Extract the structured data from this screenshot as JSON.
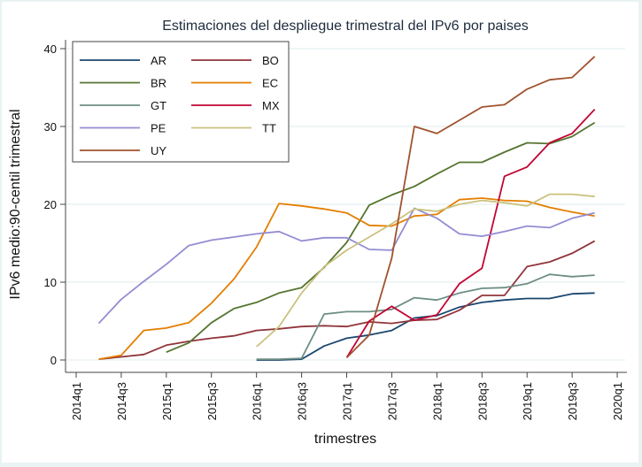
{
  "chart_data": {
    "type": "line",
    "title": "Estimaciones del despliegue trimestral del IPv6 por paises",
    "xlabel": "trimestres",
    "ylabel": "IPv6 medio:90-centil trimestral",
    "ylim": [
      0,
      40
    ],
    "yticks": [
      0,
      10,
      20,
      30,
      40
    ],
    "xticks": [
      "2014q1",
      "2014q3",
      "2015q1",
      "2015q3",
      "2016q1",
      "2016q3",
      "2017q1",
      "2017q3",
      "2018q1",
      "2018q3",
      "2019q1",
      "2019q3",
      "2020q1"
    ],
    "x": [
      "2014q1",
      "2014q2",
      "2014q3",
      "2014q4",
      "2015q1",
      "2015q2",
      "2015q3",
      "2015q4",
      "2016q1",
      "2016q2",
      "2016q3",
      "2016q4",
      "2017q1",
      "2017q2",
      "2017q3",
      "2017q4",
      "2018q1",
      "2018q2",
      "2018q3",
      "2018q4",
      "2019q1",
      "2019q2",
      "2019q3",
      "2019q4",
      "2020q1"
    ],
    "grid": true,
    "legend_position": "top-left",
    "series": [
      {
        "name": "AR",
        "color": "#1a476f",
        "values": [
          null,
          null,
          null,
          null,
          null,
          null,
          null,
          null,
          0.0,
          0.0,
          0.1,
          1.8,
          2.8,
          3.2,
          3.8,
          5.4,
          5.7,
          6.8,
          7.4,
          7.7,
          7.9,
          7.9,
          8.5,
          8.6,
          null
        ]
      },
      {
        "name": "BO",
        "color": "#90353b",
        "values": [
          null,
          0.1,
          0.4,
          0.7,
          1.9,
          2.4,
          2.8,
          3.1,
          3.8,
          4.0,
          4.3,
          4.4,
          4.3,
          4.9,
          4.7,
          5.1,
          5.2,
          6.4,
          8.3,
          8.3,
          12.0,
          12.6,
          13.7,
          15.3,
          null
        ]
      },
      {
        "name": "BR",
        "color": "#55752f",
        "values": [
          null,
          null,
          null,
          null,
          1.0,
          2.2,
          4.8,
          6.6,
          7.4,
          8.6,
          9.3,
          11.9,
          15.1,
          19.9,
          21.2,
          22.3,
          23.9,
          25.4,
          25.4,
          26.7,
          27.9,
          27.8,
          28.7,
          30.5,
          null
        ]
      },
      {
        "name": "EC",
        "color": "#e37e00",
        "values": [
          null,
          0.1,
          0.6,
          3.8,
          4.1,
          4.8,
          7.3,
          10.4,
          14.5,
          20.1,
          19.8,
          19.4,
          18.9,
          17.3,
          17.2,
          18.5,
          18.7,
          20.6,
          20.8,
          20.5,
          20.4,
          19.6,
          19.0,
          18.5,
          null
        ]
      },
      {
        "name": "GT",
        "color": "#6e8e84",
        "values": [
          null,
          null,
          null,
          null,
          null,
          null,
          null,
          null,
          0.1,
          0.1,
          0.2,
          5.9,
          6.2,
          6.2,
          6.5,
          8.0,
          7.7,
          8.6,
          9.2,
          9.3,
          9.8,
          11.0,
          10.7,
          10.9,
          null
        ]
      },
      {
        "name": "MX",
        "color": "#c10534",
        "values": [
          null,
          null,
          null,
          null,
          null,
          null,
          null,
          null,
          null,
          null,
          null,
          null,
          0.3,
          5.0,
          6.9,
          5.1,
          5.8,
          9.8,
          11.8,
          23.6,
          24.8,
          27.9,
          29.1,
          32.2,
          null
        ]
      },
      {
        "name": "PE",
        "color": "#938dd2",
        "values": [
          null,
          4.7,
          7.8,
          10.1,
          12.3,
          14.7,
          15.4,
          15.8,
          16.2,
          16.5,
          15.3,
          15.7,
          15.7,
          14.2,
          14.1,
          19.5,
          18.2,
          16.2,
          15.9,
          16.5,
          17.2,
          17.0,
          18.2,
          18.9,
          null
        ]
      },
      {
        "name": "TT",
        "color": "#cac27e",
        "values": [
          null,
          null,
          null,
          null,
          null,
          null,
          null,
          null,
          1.7,
          4.3,
          8.6,
          12.0,
          14.1,
          15.8,
          17.5,
          19.4,
          19.1,
          20.0,
          20.5,
          20.2,
          19.8,
          21.3,
          21.3,
          21.0,
          null
        ]
      },
      {
        "name": "UY",
        "color": "#a0522d",
        "values": [
          null,
          null,
          null,
          null,
          null,
          null,
          null,
          null,
          null,
          null,
          null,
          null,
          0.3,
          3.2,
          13.1,
          30.0,
          29.1,
          30.8,
          32.5,
          32.8,
          34.8,
          36.0,
          36.3,
          39.0,
          null
        ]
      }
    ]
  }
}
